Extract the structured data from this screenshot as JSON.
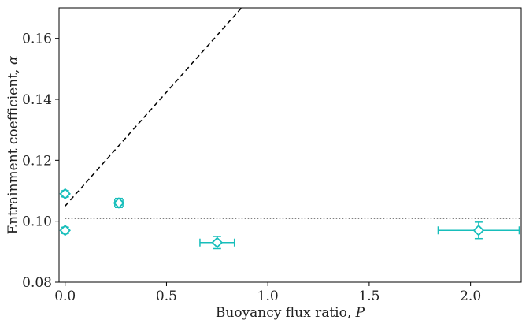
{
  "chart_data": {
    "type": "scatter",
    "xlabel": "Buoyancy flux ratio, ",
    "xlabel_symbol": "P",
    "ylabel": "Entrainment coefficient, ",
    "ylabel_symbol": "α",
    "xlim": [
      -0.03,
      2.25
    ],
    "ylim": [
      0.08,
      0.17
    ],
    "xticks": [
      0.0,
      0.5,
      1.0,
      1.5,
      2.0
    ],
    "xtick_labels": [
      "0.0",
      "0.5",
      "1.0",
      "1.5",
      "2.0"
    ],
    "yticks": [
      0.08,
      0.1,
      0.12,
      0.14,
      0.16
    ],
    "ytick_labels": [
      "0.08",
      "0.10",
      "0.12",
      "0.14",
      "0.16"
    ],
    "grid": false,
    "marker_color": "#17bebb",
    "series": [
      {
        "marker": "diamond",
        "points": [
          {
            "x": 0.0,
            "y": 0.109,
            "xerr": 0.01,
            "yerr": 0.001
          },
          {
            "x": 0.0,
            "y": 0.097,
            "xerr": 0.01,
            "yerr": 0.001
          },
          {
            "x": 0.265,
            "y": 0.106,
            "xerr": 0.02,
            "yerr": 0.0015
          },
          {
            "x": 0.75,
            "y": 0.093,
            "xerr": 0.085,
            "yerr": 0.002
          },
          {
            "x": 2.04,
            "y": 0.097,
            "xerr": 0.2,
            "yerr": 0.0027
          }
        ]
      }
    ],
    "reference_lines": [
      {
        "style": "dashed",
        "x": [
          0.0,
          0.87
        ],
        "y": [
          0.105,
          0.17
        ]
      },
      {
        "style": "dotted",
        "x": [
          0.0,
          2.25
        ],
        "y": [
          0.101,
          0.101
        ]
      }
    ]
  }
}
